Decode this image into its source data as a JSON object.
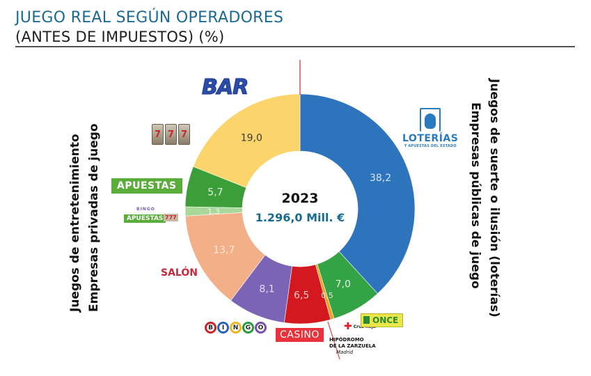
{
  "header": {
    "title": "JUEGO REAL SEGÚN OPERADORES",
    "subtitle": "(ANTES DE IMPUESTOS) (%)"
  },
  "side_labels": {
    "left_line1": "Juegos de entretenimiento",
    "left_line2": "Empresas privadas de juego",
    "right_line1": "Juegos de suerte o ilusión (loterías)",
    "right_line2": "Empresas públicas de juego"
  },
  "logos": {
    "bar": "BAR",
    "slots": [
      "7",
      "7",
      "7"
    ],
    "apuestas": "APUESTAS",
    "bingo_small": "BINGO",
    "apuestas_small": "APUESTAS",
    "mini_slot": "777",
    "salon": "SALÓN",
    "bingo_letters": [
      "B",
      "I",
      "N",
      "G",
      "O"
    ],
    "casino": "CASINO",
    "hipodromo_line1": "HIPÓDROMO",
    "hipodromo_line2": "DE LA ZARZUELA",
    "hipodromo_line3": "Madrid",
    "cruz_roja": "Cruz Roja",
    "once": "ONCE",
    "loterias": "LOTERÍAS",
    "loterias_sub": "Y APUESTAS DEL ESTADO"
  },
  "chart_data": {
    "type": "pie",
    "variant": "donut",
    "title": "JUEGO REAL SEGÚN OPERADORES (ANTES DE IMPUESTOS) (%)",
    "center_label_year": "2023",
    "center_label_total": "1.296,0 Mill. €",
    "start": "top (12 o'clock), clockwise",
    "slices": [
      {
        "name": "Loterías y Apuestas del Estado",
        "value": 38.2,
        "label": "38,2",
        "color": "#2e74bd",
        "label_color": "#d7e6f5"
      },
      {
        "name": "ONCE",
        "value": 7.0,
        "label": "7,0",
        "color": "#34a346",
        "label_color": "#e6f5e6"
      },
      {
        "name": "Cruz Roja",
        "value": 0.5,
        "label": "0,5",
        "color": "#f0a21f",
        "label_color": "#fbe7d2"
      },
      {
        "name": "Casino",
        "value": 6.5,
        "label": "6,5",
        "color": "#d4181f",
        "label_color": "#f7c9c9"
      },
      {
        "name": "Bingo",
        "value": 8.1,
        "label": "8,1",
        "color": "#7b64b5",
        "label_color": "#e4dcf3"
      },
      {
        "name": "Salón",
        "value": 13.7,
        "label": "13,7",
        "color": "#f3b088",
        "label_color": "#fde9dc"
      },
      {
        "name": "Bingo/Apuestas (otros)",
        "value": 1.3,
        "label": "1,3",
        "color": "#a8d89a",
        "label_color": "#eef8ea"
      },
      {
        "name": "Apuestas",
        "value": 5.7,
        "label": "5,7",
        "color": "#3b9e39",
        "label_color": "#e3f3e0"
      },
      {
        "name": "Bar",
        "value": 19.0,
        "label": "19,0",
        "color": "#fbd46b",
        "label_color": "#3a3a3a"
      }
    ],
    "divider_color": "#d9534f",
    "center_year_color": "#111111",
    "center_total_color": "#1b6a93"
  }
}
